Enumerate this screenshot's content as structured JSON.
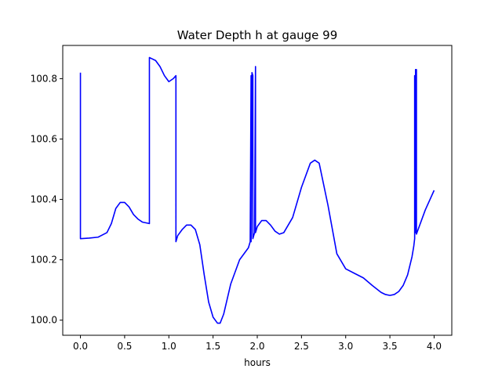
{
  "chart_data": {
    "type": "line",
    "title": "Water Depth h at gauge 99",
    "xlabel": "hours",
    "ylabel": "",
    "xlim": [
      -0.2,
      4.2
    ],
    "ylim": [
      99.95,
      100.91
    ],
    "xticks": [
      0.0,
      0.5,
      1.0,
      1.5,
      2.0,
      2.5,
      3.0,
      3.5,
      4.0
    ],
    "xtick_labels": [
      "0.0",
      "0.5",
      "1.0",
      "1.5",
      "2.0",
      "2.5",
      "3.0",
      "3.5",
      "4.0"
    ],
    "yticks": [
      100.0,
      100.2,
      100.4,
      100.6,
      100.8
    ],
    "ytick_labels": [
      "100.0",
      "100.2",
      "100.4",
      "100.6",
      "100.8"
    ],
    "grid": false,
    "colors": {
      "series": "#0000ff",
      "axes": "#000000",
      "background": "#ffffff"
    },
    "series": [
      {
        "x": [
          0.0,
          0.0,
          0.0,
          0.1,
          0.2,
          0.3,
          0.35,
          0.4,
          0.45,
          0.5,
          0.55,
          0.6,
          0.65,
          0.7,
          0.78,
          0.78,
          0.85,
          0.9,
          0.95,
          1.0,
          1.05,
          1.08,
          1.08,
          1.1,
          1.15,
          1.2,
          1.25,
          1.3,
          1.35,
          1.4,
          1.45,
          1.5,
          1.55,
          1.58,
          1.62,
          1.7,
          1.8,
          1.9,
          1.92,
          1.93,
          1.93,
          1.94,
          1.95,
          1.95,
          1.96,
          1.97,
          1.98,
          1.98,
          1.99,
          2.0,
          2.05,
          2.1,
          2.15,
          2.2,
          2.25,
          2.3,
          2.4,
          2.5,
          2.6,
          2.65,
          2.7,
          2.8,
          2.9,
          3.0,
          3.1,
          3.2,
          3.3,
          3.4,
          3.45,
          3.5,
          3.55,
          3.6,
          3.65,
          3.7,
          3.75,
          3.77,
          3.78,
          3.78,
          3.79,
          3.79,
          3.8,
          3.8,
          3.9,
          4.0
        ],
        "y": [
          100.82,
          100.27,
          100.27,
          100.272,
          100.275,
          100.29,
          100.32,
          100.37,
          100.39,
          100.39,
          100.375,
          100.35,
          100.335,
          100.325,
          100.32,
          100.87,
          100.86,
          100.84,
          100.81,
          100.79,
          100.8,
          100.81,
          100.26,
          100.28,
          100.3,
          100.315,
          100.315,
          100.3,
          100.25,
          100.15,
          100.06,
          100.01,
          99.99,
          99.99,
          100.02,
          100.12,
          100.2,
          100.24,
          100.26,
          100.81,
          100.26,
          100.82,
          100.81,
          100.27,
          100.28,
          100.29,
          100.84,
          100.29,
          100.3,
          100.31,
          100.33,
          100.33,
          100.315,
          100.295,
          100.285,
          100.29,
          100.34,
          100.44,
          100.52,
          100.53,
          100.52,
          100.38,
          100.22,
          100.17,
          100.155,
          100.14,
          100.115,
          100.092,
          100.085,
          100.082,
          100.085,
          100.095,
          100.115,
          100.15,
          100.21,
          100.245,
          100.27,
          100.81,
          100.29,
          100.83,
          100.83,
          100.285,
          100.365,
          100.43
        ]
      }
    ]
  }
}
